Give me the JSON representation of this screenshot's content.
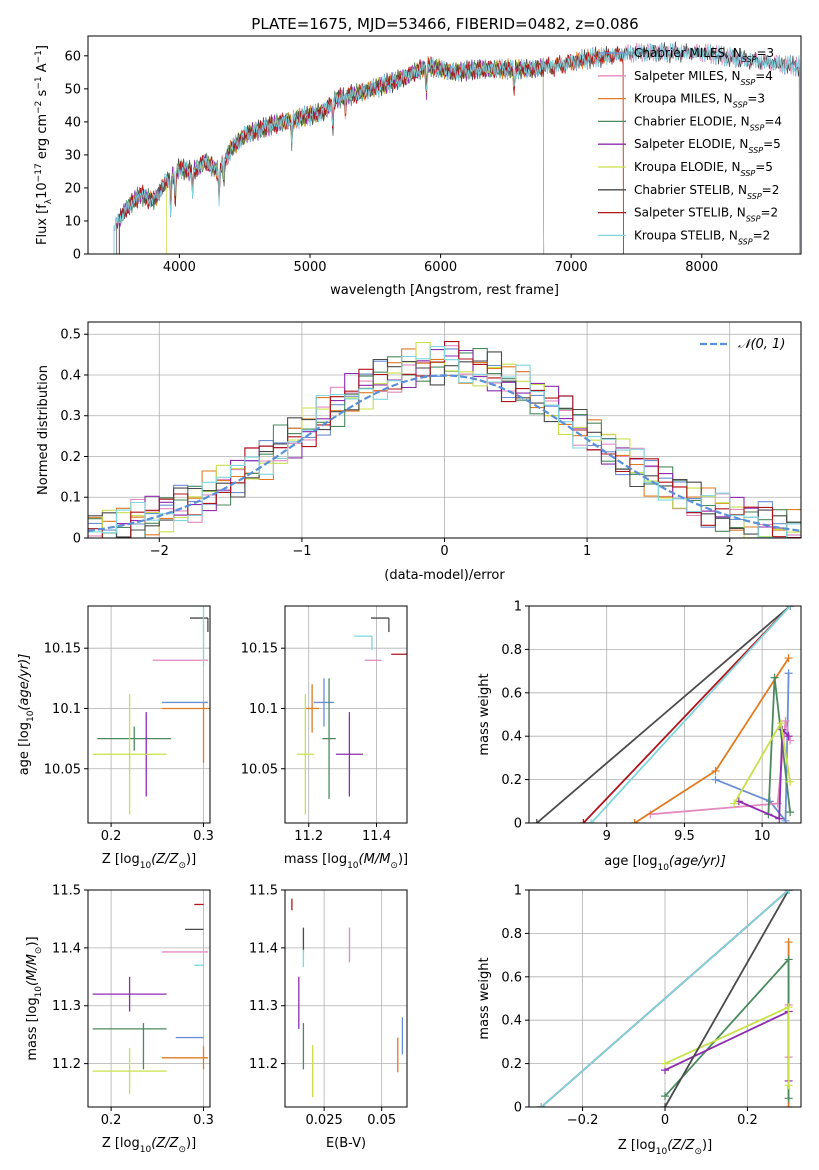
{
  "title": "PLATE=1675, MJD=53466, FIBERID=0482, z=0.086",
  "colors": {
    "cm": "#6a8fd6",
    "sm": "#e38ac0",
    "km": "#e07b22",
    "ce": "#4b8a5e",
    "se": "#8e2bb0",
    "ke": "#c8e04a",
    "cs": "#4a4a4a",
    "ss": "#b0141c",
    "ks": "#7fd6de"
  },
  "legend": [
    {
      "key": "cm",
      "prefix": "Chabrier MILES, N",
      "sub": "SSP",
      "suffix": "=3"
    },
    {
      "key": "sm",
      "prefix": "Salpeter MILES, N",
      "sub": "SSP",
      "suffix": "=4"
    },
    {
      "key": "km",
      "prefix": "Kroupa MILES, N",
      "sub": "SSP",
      "suffix": "=3"
    },
    {
      "key": "ce",
      "prefix": "Chabrier ELODIE, N",
      "sub": "SSP",
      "suffix": "=4"
    },
    {
      "key": "se",
      "prefix": "Salpeter ELODIE, N",
      "sub": "SSP",
      "suffix": "=5"
    },
    {
      "key": "ke",
      "prefix": "Kroupa ELODIE, N",
      "sub": "SSP",
      "suffix": "=5"
    },
    {
      "key": "cs",
      "prefix": "Chabrier STELIB, N",
      "sub": "SSP",
      "suffix": "=2"
    },
    {
      "key": "ss",
      "prefix": "Salpeter STELIB, N",
      "sub": "SSP",
      "suffix": "=2"
    },
    {
      "key": "ks",
      "prefix": "Kroupa STELIB, N",
      "sub": "SSP",
      "suffix": "=2"
    }
  ],
  "chart_data": [
    {
      "id": "spectrum",
      "type": "line",
      "xlabel": "wavelength [Angstrom, rest frame]",
      "ylabel_parts": [
        "Flux [f",
        "λ",
        "10",
        "−17",
        " erg cm",
        "−2",
        " s",
        "−1",
        " A",
        "−1",
        "]"
      ],
      "xlim": [
        3300,
        8760
      ],
      "ylim": [
        0,
        66
      ],
      "xticks": [
        4000,
        5000,
        6000,
        7000,
        8000
      ],
      "yticks": [
        0,
        10,
        20,
        30,
        40,
        50,
        60
      ],
      "grid": false,
      "legend_position": "top-right",
      "anchors": [
        [
          3500,
          8
        ],
        [
          3600,
          14
        ],
        [
          3700,
          18
        ],
        [
          3800,
          16
        ],
        [
          3900,
          22
        ],
        [
          4000,
          26
        ],
        [
          4100,
          25
        ],
        [
          4200,
          28
        ],
        [
          4300,
          25
        ],
        [
          4400,
          32
        ],
        [
          4500,
          36
        ],
        [
          4700,
          39
        ],
        [
          4900,
          41
        ],
        [
          5100,
          43
        ],
        [
          5200,
          47
        ],
        [
          5400,
          49
        ],
        [
          5700,
          53
        ],
        [
          5900,
          57
        ],
        [
          6100,
          55
        ],
        [
          6300,
          56
        ],
        [
          6500,
          56
        ],
        [
          6700,
          56
        ],
        [
          6900,
          57
        ],
        [
          7100,
          59
        ],
        [
          7300,
          60
        ],
        [
          7500,
          61
        ],
        [
          7700,
          61
        ],
        [
          8000,
          61
        ],
        [
          8300,
          59
        ],
        [
          8500,
          58
        ],
        [
          8700,
          57
        ]
      ],
      "absorptions": [
        [
          3934,
          10
        ],
        [
          3968,
          9
        ],
        [
          4101,
          6
        ],
        [
          4304,
          8
        ],
        [
          4340,
          6
        ],
        [
          4861,
          7
        ],
        [
          5175,
          8
        ],
        [
          5270,
          4
        ],
        [
          5892,
          8
        ],
        [
          6563,
          6
        ]
      ],
      "series_ranges": {
        "cm": [
          3500,
          8750
        ],
        "sm": [
          3500,
          8750
        ],
        "km": [
          3540,
          7400
        ],
        "ce": [
          3540,
          6790
        ],
        "se": [
          3540,
          6790
        ],
        "ke": [
          3900,
          6790
        ],
        "cs": [
          3520,
          8750
        ],
        "ss": [
          3540,
          7400
        ],
        "ks": [
          3500,
          8750
        ]
      }
    },
    {
      "id": "residuals",
      "type": "histogram",
      "xlabel": "(data-model)/error",
      "ylabel": "Normed distribution",
      "xlim": [
        -2.5,
        2.5
      ],
      "ylim": [
        0,
        0.53
      ],
      "xticks": [
        -2,
        -1,
        0,
        1,
        2
      ],
      "yticks": [
        0.0,
        0.1,
        0.2,
        0.3,
        0.4,
        0.5
      ],
      "grid": true,
      "legend_position": "top-right",
      "normal_label": "𝒩(0, 1)",
      "normal_color": "#5b8fd6",
      "bin_width": 0.1
    },
    {
      "id": "age_vs_Z",
      "type": "scatter",
      "xlabel_parts": [
        "Z [log",
        "10",
        "(Z/Z",
        "⊙",
        ")]"
      ],
      "ylabel_parts": [
        "age  [log",
        "10",
        "(age/yr)]"
      ],
      "xlim": [
        0.175,
        0.307
      ],
      "ylim": [
        10.005,
        10.185
      ],
      "xticks": [
        0.2,
        0.3
      ],
      "yticks": [
        10.05,
        10.1,
        10.15
      ],
      "grid": true,
      "points": [
        {
          "key": "cm",
          "x": 0.28,
          "y": 10.105,
          "xerr": 0.025,
          "yerr": 0.0
        },
        {
          "key": "sm",
          "x": 0.275,
          "y": 10.14,
          "xerr": 0.03,
          "yerr": 0.0
        },
        {
          "key": "km",
          "x": 0.29,
          "y": 10.1,
          "xerr": 0.035,
          "yerr": 0.0
        },
        {
          "key": "km",
          "x": 0.3,
          "y": 10.08,
          "xerr": 0.0,
          "yerr": 0.025
        },
        {
          "key": "ce",
          "x": 0.225,
          "y": 10.075,
          "xerr": 0.04,
          "yerr": 0.01
        },
        {
          "key": "se",
          "x": 0.238,
          "y": 10.062,
          "xerr": 0.0,
          "yerr": 0.035
        },
        {
          "key": "ke",
          "x": 0.22,
          "y": 10.062,
          "xerr": 0.04,
          "yerr": 0.05
        },
        {
          "key": "cs",
          "x": 0.295,
          "y": 10.175,
          "xerr": 0.0,
          "yerr": 0.0
        },
        {
          "key": "ks",
          "x": 0.3,
          "y": 10.165,
          "xerr": 0.0,
          "yerr": 0.03
        }
      ]
    },
    {
      "id": "age_vs_mass",
      "type": "scatter",
      "xlabel_parts": [
        "mass [log",
        "10",
        "(M/M",
        "⊙",
        ")]"
      ],
      "ylabel_parts": [],
      "xlim": [
        11.13,
        11.49
      ],
      "ylim": [
        10.005,
        10.185
      ],
      "xticks": [
        11.2,
        11.4
      ],
      "yticks": [
        10.05,
        10.1,
        10.15
      ],
      "grid": true,
      "points": [
        {
          "key": "cm",
          "x": 11.245,
          "y": 10.105,
          "xerr": 0.03,
          "yerr": 0.02
        },
        {
          "key": "sm",
          "x": 11.39,
          "y": 10.14,
          "xerr": 0.025,
          "yerr": 0.0
        },
        {
          "key": "km",
          "x": 11.21,
          "y": 10.1,
          "xerr": 0.02,
          "yerr": 0.02
        },
        {
          "key": "ce",
          "x": 11.26,
          "y": 10.075,
          "xerr": 0.02,
          "yerr": 0.05
        },
        {
          "key": "se",
          "x": 11.32,
          "y": 10.062,
          "xerr": 0.04,
          "yerr": 0.035
        },
        {
          "key": "ke",
          "x": 11.19,
          "y": 10.062,
          "xerr": 0.025,
          "yerr": 0.05
        },
        {
          "key": "cs",
          "x": 11.41,
          "y": 10.175,
          "xerr": 0.0,
          "yerr": 0.0
        },
        {
          "key": "ss",
          "x": 11.47,
          "y": 10.145,
          "xerr": 0.0,
          "yerr": 0.0
        },
        {
          "key": "ks",
          "x": 11.36,
          "y": 10.16,
          "xerr": 0.0,
          "yerr": 0.0
        }
      ]
    },
    {
      "id": "massweight_vs_age",
      "type": "line",
      "xlabel_parts": [
        "age  [log",
        "10",
        "(age/yr)]"
      ],
      "ylabel": "mass weight",
      "xlim": [
        8.5,
        10.25
      ],
      "ylim": [
        0,
        1.0
      ],
      "xticks": [
        9.0,
        9.5,
        10.0
      ],
      "yticks": [
        0.0,
        0.2,
        0.4,
        0.6,
        0.8,
        1.0
      ],
      "grid": true,
      "series": {
        "cs": [
          [
            8.55,
            0.0
          ],
          [
            10.18,
            1.0
          ]
        ],
        "ss": [
          [
            8.85,
            0.0
          ],
          [
            10.18,
            1.0
          ]
        ],
        "ks": [
          [
            8.9,
            0.0
          ],
          [
            10.18,
            1.0
          ]
        ],
        "km": [
          [
            9.18,
            0.0
          ],
          [
            9.7,
            0.24
          ],
          [
            10.17,
            0.76
          ]
        ],
        "sm": [
          [
            9.28,
            0.04
          ],
          [
            10.1,
            0.09
          ],
          [
            10.15,
            0.47
          ],
          [
            10.18,
            0.38
          ]
        ],
        "cm": [
          [
            9.7,
            0.2
          ],
          [
            10.05,
            0.1
          ],
          [
            10.15,
            0.01
          ],
          [
            10.17,
            0.69
          ]
        ],
        "ce": [
          [
            10.04,
            0.04
          ],
          [
            10.08,
            0.67
          ],
          [
            10.18,
            0.05
          ]
        ],
        "se": [
          [
            9.85,
            0.1
          ],
          [
            10.11,
            0.02
          ],
          [
            10.13,
            0.43
          ],
          [
            10.17,
            0.4
          ]
        ],
        "ke": [
          [
            9.82,
            0.09
          ],
          [
            10.12,
            0.46
          ],
          [
            10.18,
            0.19
          ]
        ]
      }
    },
    {
      "id": "mass_vs_Z",
      "type": "scatter",
      "xlabel_parts": [
        "Z [log",
        "10",
        "(Z/Z",
        "⊙",
        ")]"
      ],
      "ylabel_parts": [
        "mass [log",
        "10",
        "(M/M",
        "⊙",
        ")]"
      ],
      "xlim": [
        0.175,
        0.307
      ],
      "ylim": [
        11.125,
        11.5
      ],
      "xticks": [
        0.2,
        0.3
      ],
      "yticks": [
        11.2,
        11.3,
        11.4,
        11.5
      ],
      "grid": true,
      "points": [
        {
          "key": "cm",
          "x": 0.285,
          "y": 11.245,
          "xerr": 0.015,
          "yerr": 0.0
        },
        {
          "key": "sm",
          "x": 0.28,
          "y": 11.393,
          "xerr": 0.025,
          "yerr": 0.0
        },
        {
          "key": "km",
          "x": 0.28,
          "y": 11.21,
          "xerr": 0.025,
          "yerr": 0.0
        },
        {
          "key": "km",
          "x": 0.3,
          "y": 11.21,
          "xerr": 0.0,
          "yerr": 0.02
        },
        {
          "key": "ce",
          "x": 0.22,
          "y": 11.26,
          "xerr": 0.04,
          "yerr": 0.0
        },
        {
          "key": "ce",
          "x": 0.235,
          "y": 11.23,
          "xerr": 0.0,
          "yerr": 0.04
        },
        {
          "key": "se",
          "x": 0.22,
          "y": 11.32,
          "xerr": 0.04,
          "yerr": 0.03
        },
        {
          "key": "ke",
          "x": 0.22,
          "y": 11.187,
          "xerr": 0.04,
          "yerr": 0.04
        },
        {
          "key": "cs",
          "x": 0.29,
          "y": 11.432,
          "xerr": 0.01,
          "yerr": 0.0
        },
        {
          "key": "ss",
          "x": 0.295,
          "y": 11.475,
          "xerr": 0.005,
          "yerr": 0.0
        },
        {
          "key": "ks",
          "x": 0.295,
          "y": 11.37,
          "xerr": 0.005,
          "yerr": 0.0
        }
      ]
    },
    {
      "id": "mass_vs_ebv",
      "type": "scatter",
      "xlabel": "E(B-V)",
      "ylabel": "",
      "xlim": [
        0.008,
        0.061
      ],
      "ylim": [
        11.125,
        11.5
      ],
      "xticks": [
        0.025,
        0.05
      ],
      "yticks": [
        11.2,
        11.3,
        11.4,
        11.5
      ],
      "grid": true,
      "points": [
        {
          "key": "cm",
          "x": 0.059,
          "y": 11.248,
          "xerr": 0.0,
          "yerr": 0.032
        },
        {
          "key": "sm",
          "x": 0.036,
          "y": 11.405,
          "xerr": 0.0,
          "yerr": 0.03
        },
        {
          "key": "km",
          "x": 0.057,
          "y": 11.215,
          "xerr": 0.0,
          "yerr": 0.03
        },
        {
          "key": "ce",
          "x": 0.016,
          "y": 11.23,
          "xerr": 0.0,
          "yerr": 0.04
        },
        {
          "key": "se",
          "x": 0.014,
          "y": 11.305,
          "xerr": 0.0,
          "yerr": 0.045
        },
        {
          "key": "ke",
          "x": 0.02,
          "y": 11.187,
          "xerr": 0.0,
          "yerr": 0.045
        },
        {
          "key": "cs",
          "x": 0.016,
          "y": 11.415,
          "xerr": 0.0,
          "yerr": 0.02
        },
        {
          "key": "ss",
          "x": 0.011,
          "y": 11.475,
          "xerr": 0.0,
          "yerr": 0.01
        },
        {
          "key": "ks",
          "x": 0.016,
          "y": 11.382,
          "xerr": 0.0,
          "yerr": 0.015
        }
      ]
    },
    {
      "id": "massweight_vs_Z",
      "type": "line",
      "xlabel_parts": [
        "Z [log",
        "10",
        "(Z/Z",
        "⊙",
        ")]"
      ],
      "ylabel": "mass weight",
      "xlim": [
        -0.33,
        0.33
      ],
      "ylim": [
        0,
        1.0
      ],
      "xticks": [
        -0.2,
        0.0,
        0.2
      ],
      "yticks": [
        0.0,
        0.2,
        0.4,
        0.6,
        0.8,
        1.0
      ],
      "grid": true,
      "series": {
        "cs": [
          [
            0.0,
            0.0
          ],
          [
            0.3,
            1.0
          ]
        ],
        "ss": [
          [
            -0.3,
            0.0
          ],
          [
            0.3,
            1.0
          ]
        ],
        "ks": [
          [
            -0.3,
            0.0
          ],
          [
            0.3,
            1.0
          ]
        ],
        "cm": [
          [
            -0.3,
            0.0
          ],
          [
            0.3,
            1.0
          ]
        ],
        "km": [
          [
            0.3,
            0.0
          ],
          [
            0.3,
            0.76
          ]
        ],
        "ce": [
          [
            0.0,
            0.05
          ],
          [
            0.3,
            0.68
          ],
          [
            0.3,
            0.04
          ]
        ],
        "se": [
          [
            0.0,
            0.17
          ],
          [
            0.3,
            0.44
          ],
          [
            0.3,
            0.12
          ]
        ],
        "ke": [
          [
            0.0,
            0.2
          ],
          [
            0.3,
            0.46
          ],
          [
            0.3,
            0.1
          ]
        ],
        "sm": [
          [
            0.3,
            0.23
          ],
          [
            0.3,
            0.47
          ]
        ]
      }
    }
  ]
}
